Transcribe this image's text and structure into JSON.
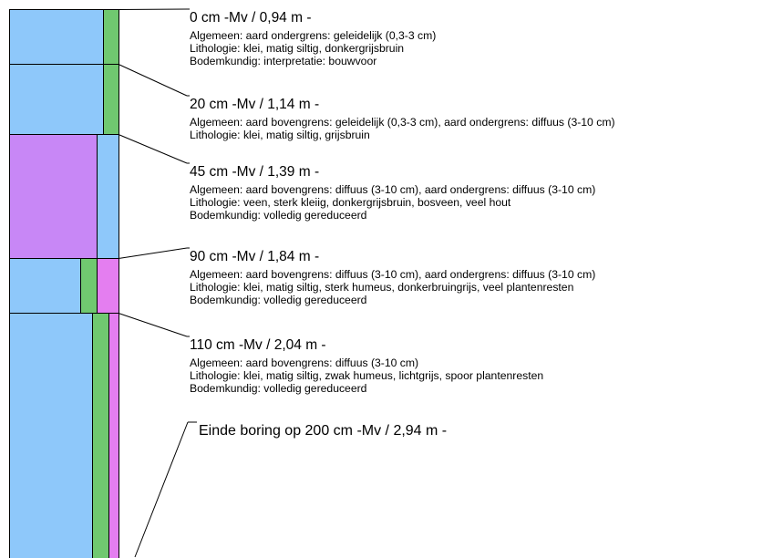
{
  "colors": {
    "clay": "#8ec8fa",
    "peat": "#c887f6",
    "green_column": "#70c870",
    "pink_column": "#e47ef0",
    "stroke": "#000000"
  },
  "layers": [
    {
      "title": "0 cm -Mv / 0,94 m -",
      "top_cm": 0,
      "bottom_cm": 20,
      "lines": [
        "Algemeen: aard ondergrens: geleidelijk (0,3-3 cm)",
        "Lithologie: klei, matig siltig, donkergrijsbruin",
        "Bodemkundig: interpretatie: bouwvoor"
      ]
    },
    {
      "title": "20 cm -Mv / 1,14 m -",
      "top_cm": 20,
      "bottom_cm": 45,
      "lines": [
        "Algemeen: aard bovengrens: geleidelijk (0,3-3 cm), aard ondergrens: diffuus (3-10 cm)",
        "Lithologie: klei, matig siltig, grijsbruin"
      ]
    },
    {
      "title": "45 cm -Mv / 1,39 m -",
      "top_cm": 45,
      "bottom_cm": 90,
      "lines": [
        "Algemeen: aard bovengrens: diffuus (3-10 cm), aard ondergrens: diffuus (3-10 cm)",
        "Lithologie: veen, sterk kleiig, donkergrijsbruin, bosveen, veel hout",
        "Bodemkundig: volledig gereduceerd"
      ]
    },
    {
      "title": "90 cm -Mv / 1,84 m -",
      "top_cm": 90,
      "bottom_cm": 110,
      "lines": [
        "Algemeen: aard bovengrens: diffuus (3-10 cm), aard ondergrens: diffuus (3-10 cm)",
        "Lithologie: klei, matig siltig, sterk humeus, donkerbruingrijs, veel plantenresten",
        "Bodemkundig: volledig gereduceerd"
      ]
    },
    {
      "title": "110 cm -Mv / 2,04 m -",
      "top_cm": 110,
      "bottom_cm": 200,
      "lines": [
        "Algemeen: aard bovengrens: diffuus (3-10 cm)",
        "Lithologie: klei, matig siltig, zwak humeus, lichtgrijs, spoor plantenresten",
        "Bodemkundig: volledig gereduceerd"
      ]
    }
  ],
  "end_label": "Einde boring op 200 cm -Mv / 2,94 m -"
}
